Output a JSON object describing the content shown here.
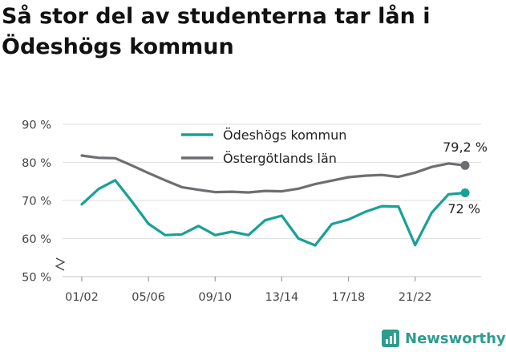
{
  "chart_data": {
    "type": "line",
    "title": "Så stor del av studenterna tar lån i Ödeshögs kommun",
    "x": [
      "01/02",
      "02/03",
      "03/04",
      "04/05",
      "05/06",
      "06/07",
      "07/08",
      "08/09",
      "09/10",
      "10/11",
      "11/12",
      "12/13",
      "13/14",
      "14/15",
      "15/16",
      "16/17",
      "17/18",
      "18/19",
      "19/20",
      "20/21",
      "21/22",
      "22/23",
      "23/24",
      "24/25"
    ],
    "x_tick_labels": [
      "01/02",
      "05/06",
      "09/10",
      "13/14",
      "17/18",
      "21/22"
    ],
    "y_tick_labels": [
      "50 %",
      "60 %",
      "70 %",
      "80 %",
      "90 %"
    ],
    "ylim": [
      50,
      90
    ],
    "grid": true,
    "legend_position": "top-center",
    "series": [
      {
        "name": "Ödeshögs kommun",
        "color": "#17a197",
        "end_label": "72 %",
        "values": [
          69.0,
          73.0,
          75.3,
          69.8,
          63.9,
          60.9,
          61.1,
          63.3,
          60.9,
          61.8,
          60.9,
          64.8,
          66.0,
          60.0,
          58.2,
          63.8,
          65.0,
          67.0,
          68.5,
          68.4,
          58.3,
          66.8,
          71.6,
          72.0
        ]
      },
      {
        "name": "Östergötlands län",
        "color": "#6e6e72",
        "end_label": "79,2 %",
        "values": [
          81.8,
          81.2,
          81.1,
          79.2,
          77.2,
          75.3,
          73.5,
          72.8,
          72.2,
          72.3,
          72.1,
          72.5,
          72.4,
          73.1,
          74.3,
          75.2,
          76.1,
          76.5,
          76.7,
          76.2,
          77.3,
          78.8,
          79.7,
          79.2
        ]
      }
    ]
  },
  "branding": {
    "logo_icon": "bar-chart-icon",
    "name": "Newsworthy"
  }
}
